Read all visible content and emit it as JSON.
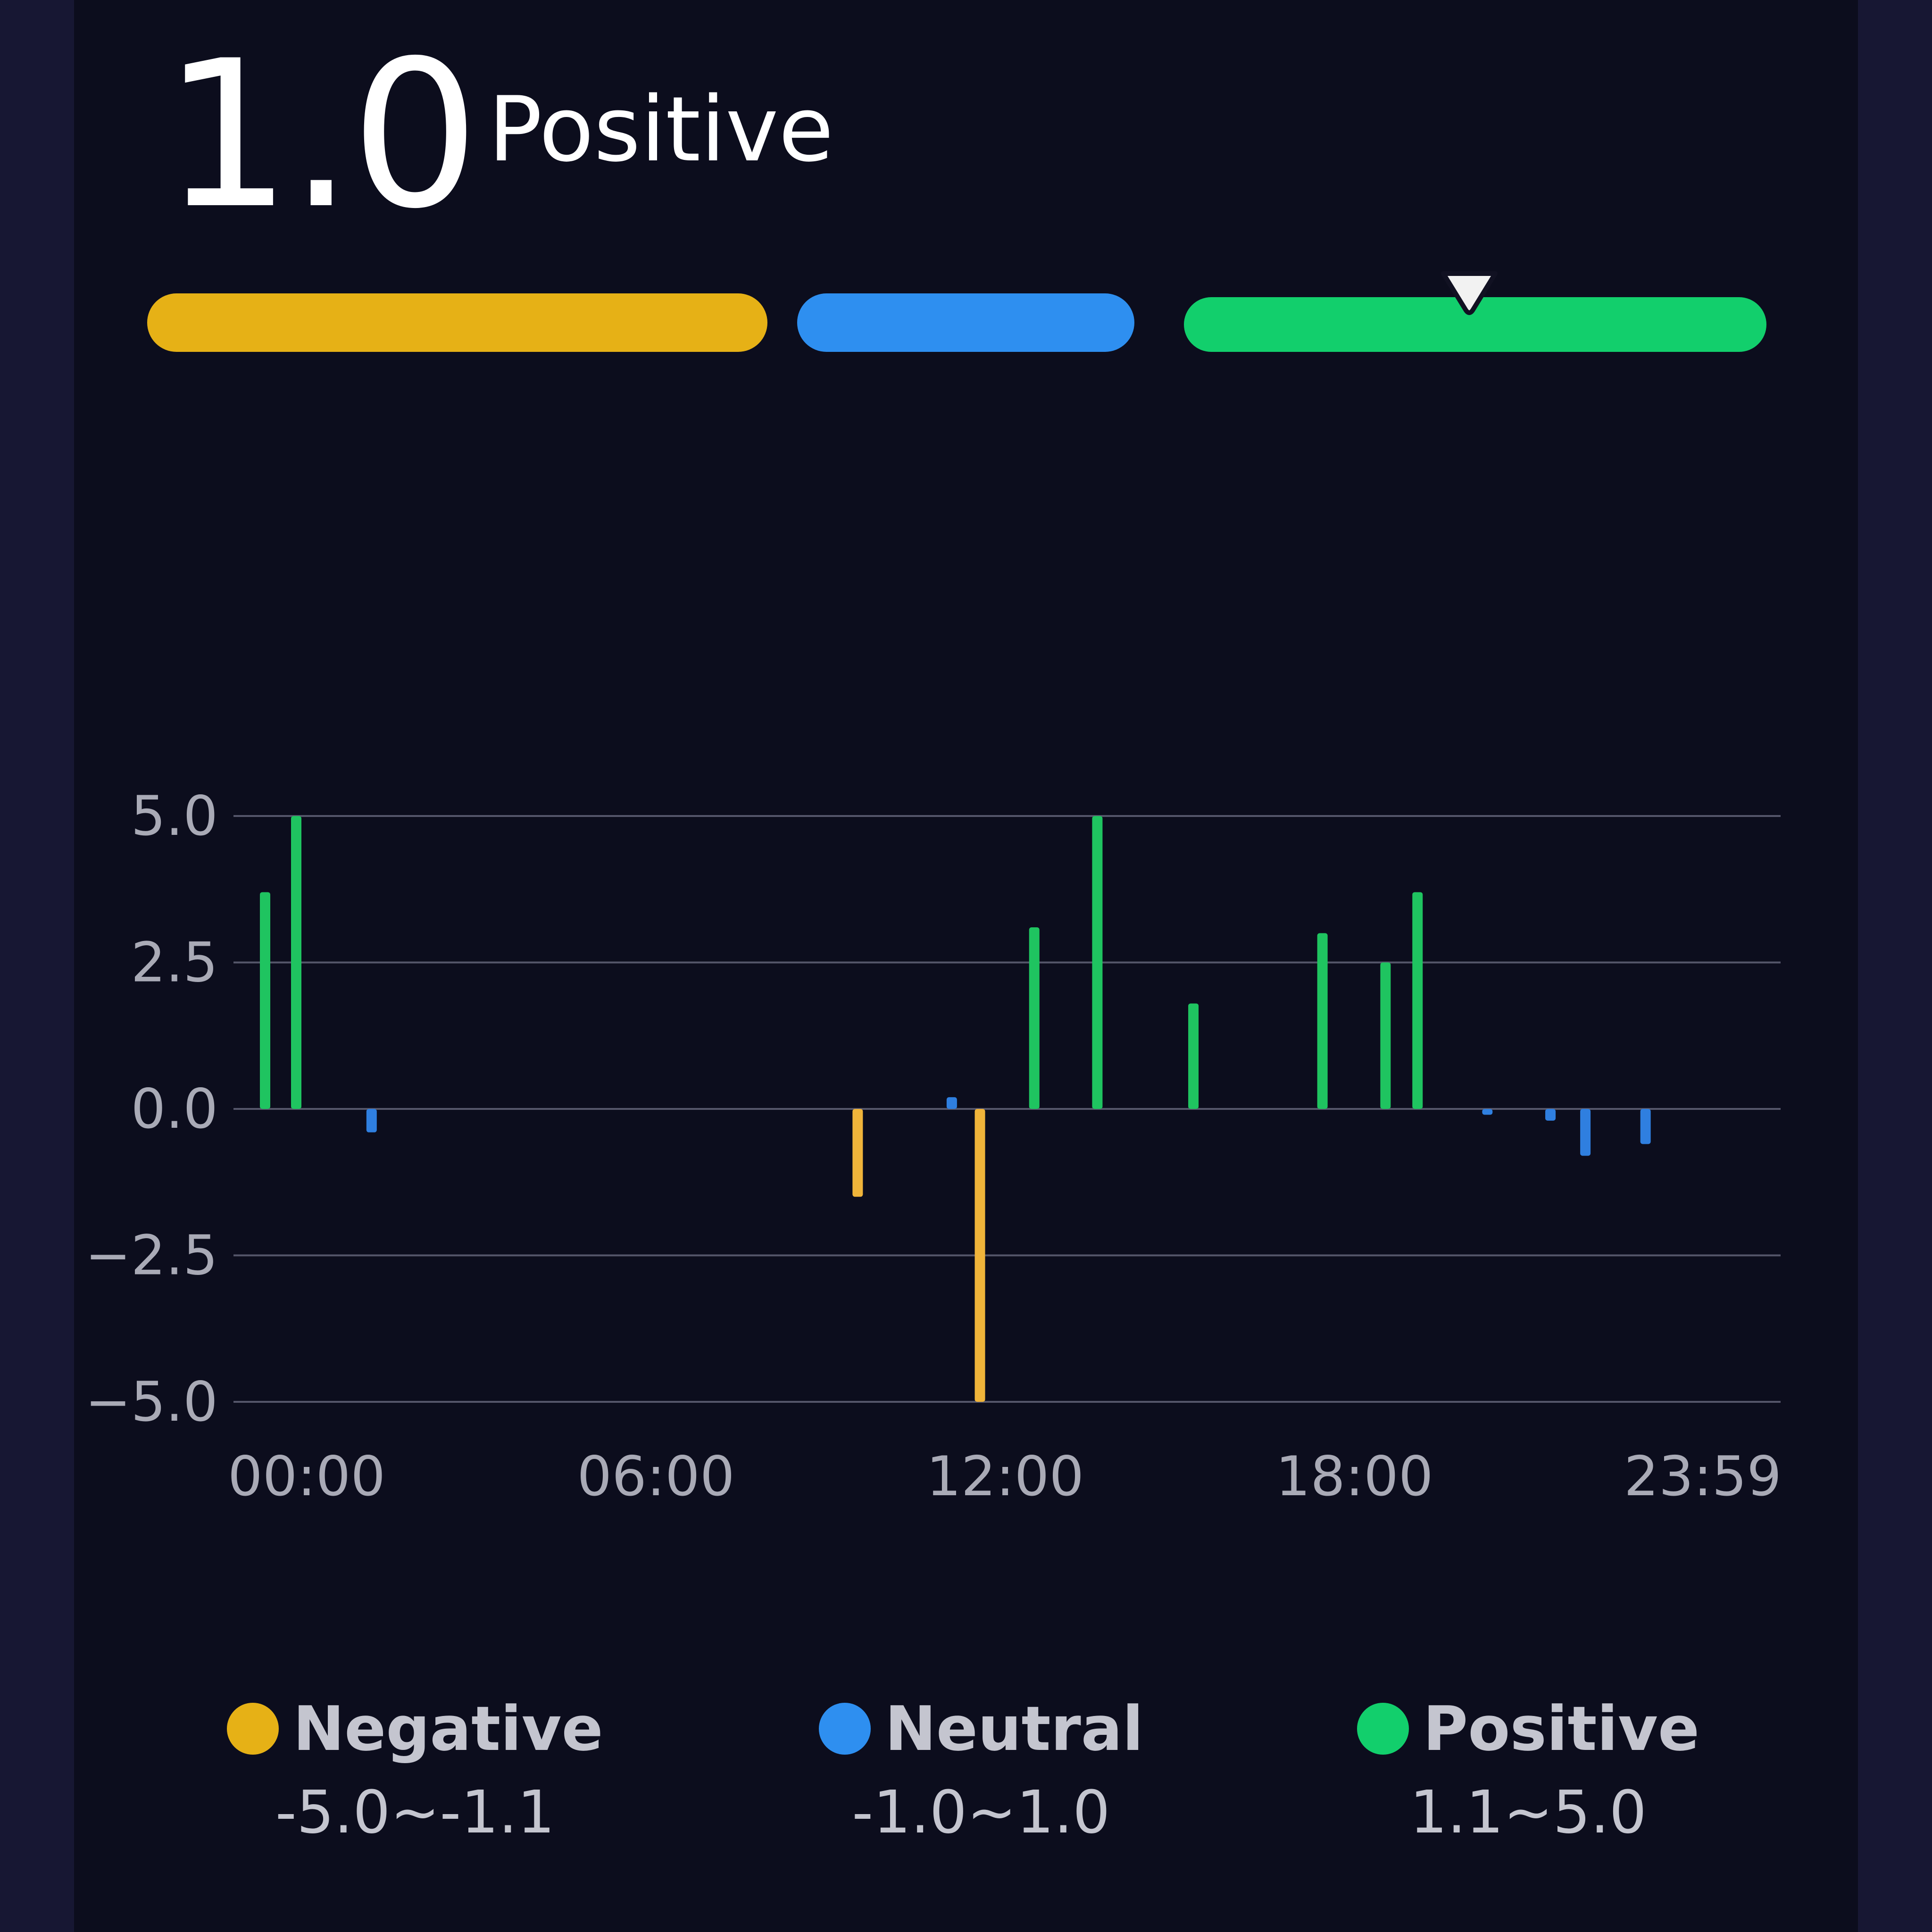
{
  "header": {
    "score": "1.0",
    "status": "Positive"
  },
  "gauge": {
    "segments": [
      {
        "name": "Negative",
        "color": "#e6b116"
      },
      {
        "name": "Neutral",
        "color": "#2e8ff0"
      },
      {
        "name": "Positive",
        "color": "#12cf6c"
      }
    ],
    "marker_value": 1.0
  },
  "chart_data": {
    "type": "bar",
    "ylim": [
      -5.0,
      5.0
    ],
    "y_ticks": [
      "5.0",
      "2.5",
      "0.0",
      "−2.5",
      "−5.0"
    ],
    "y_tick_values": [
      5.0,
      2.5,
      0.0,
      -2.5,
      -5.0
    ],
    "x_ticks": [
      "00:00",
      "06:00",
      "12:00",
      "18:00",
      "23:59"
    ],
    "grid": true,
    "colors": {
      "negative": "#f0b43a",
      "neutral": "#2f7fe0",
      "positive": "#1fc460"
    },
    "points": [
      {
        "time": "23:19",
        "value": 3.7,
        "category": "positive"
      },
      {
        "time": "23:52",
        "value": 5.0,
        "category": "positive"
      },
      {
        "time": "01:07",
        "value": -0.4,
        "category": "neutral"
      },
      {
        "time": "09:28",
        "value": -1.5,
        "category": "negative"
      },
      {
        "time": "11:05",
        "value": 0.2,
        "category": "neutral"
      },
      {
        "time": "11:34",
        "value": -5.0,
        "category": "negative"
      },
      {
        "time": "12:30",
        "value": 3.1,
        "category": "positive"
      },
      {
        "time": "13:35",
        "value": 5.0,
        "category": "positive"
      },
      {
        "time": "15:14",
        "value": 1.8,
        "category": "positive"
      },
      {
        "time": "17:27",
        "value": 3.0,
        "category": "positive"
      },
      {
        "time": "18:32",
        "value": 2.5,
        "category": "positive"
      },
      {
        "time": "19:05",
        "value": 3.7,
        "category": "positive"
      },
      {
        "time": "20:17",
        "value": -0.1,
        "category": "neutral"
      },
      {
        "time": "21:22",
        "value": -0.2,
        "category": "neutral"
      },
      {
        "time": "21:58",
        "value": -0.8,
        "category": "neutral"
      },
      {
        "time": "23:00",
        "value": -0.6,
        "category": "neutral"
      }
    ]
  },
  "legend": [
    {
      "name": "Negative",
      "range": "-5.0~-1.1",
      "color": "#e6b116"
    },
    {
      "name": "Neutral",
      "range": "-1.0~1.0",
      "color": "#2e8ff0"
    },
    {
      "name": "Positive",
      "range": "1.1~5.0",
      "color": "#12cf6c"
    }
  ]
}
